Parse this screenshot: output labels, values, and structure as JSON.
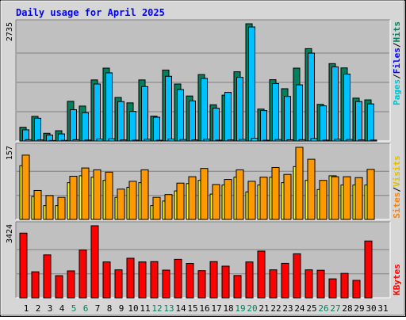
{
  "chart_data": [
    {
      "type": "bar",
      "title": "Daily usage for April 2025",
      "ymax_label": "2735",
      "ylim": [
        0,
        2735
      ],
      "categories": [
        "1",
        "2",
        "3",
        "4",
        "5",
        "6",
        "7",
        "8",
        "9",
        "10",
        "11",
        "12",
        "13",
        "14",
        "15",
        "16",
        "17",
        "18",
        "19",
        "20",
        "21",
        "22",
        "23",
        "24",
        "25",
        "26",
        "27",
        "28",
        "29",
        "30",
        "31"
      ],
      "weekend_days": [
        "5",
        "6",
        "12",
        "13",
        "19",
        "20",
        "26",
        "27"
      ],
      "series": [
        {
          "name": "Hits",
          "color": "#00805c",
          "values": [
            320,
            575,
            180,
            240,
            925,
            815,
            1425,
            1700,
            1015,
            890,
            1425,
            580,
            1655,
            1330,
            1050,
            1550,
            845,
            1070,
            1615,
            2735,
            745,
            1430,
            1220,
            1700,
            2155,
            855,
            1805,
            1705,
            1000,
            960,
            0
          ]
        },
        {
          "name": "Files",
          "color": "#00c0ff",
          "values": [
            260,
            530,
            140,
            165,
            730,
            660,
            1330,
            1590,
            920,
            690,
            1270,
            555,
            1510,
            1200,
            935,
            1460,
            765,
            1135,
            1485,
            2660,
            710,
            1340,
            1040,
            1310,
            2050,
            820,
            1730,
            1560,
            920,
            865,
            0
          ]
        },
        {
          "name": "Pages",
          "color": "#00e0ff",
          "values": [
            30,
            25,
            12,
            15,
            30,
            22,
            45,
            50,
            25,
            20,
            40,
            18,
            45,
            35,
            25,
            40,
            20,
            25,
            38,
            60,
            18,
            35,
            28,
            30,
            55,
            20,
            40,
            35,
            25,
            22,
            0
          ]
        }
      ]
    },
    {
      "type": "bar",
      "ymax_label": "157",
      "ylim": [
        0,
        157
      ],
      "categories": [
        "1",
        "2",
        "3",
        "4",
        "5",
        "6",
        "7",
        "8",
        "9",
        "10",
        "11",
        "12",
        "13",
        "14",
        "15",
        "16",
        "17",
        "18",
        "19",
        "20",
        "21",
        "22",
        "23",
        "24",
        "25",
        "26",
        "27",
        "28",
        "29",
        "30",
        "31"
      ],
      "series": [
        {
          "name": "Visits",
          "color": "#ffff00",
          "values": [
            117,
            50,
            30,
            30,
            80,
            95,
            92,
            85,
            48,
            70,
            80,
            30,
            40,
            62,
            78,
            85,
            55,
            75,
            92,
            60,
            75,
            92,
            80,
            115,
            85,
            65,
            95,
            75,
            75,
            75,
            0
          ]
        },
        {
          "name": "Sites",
          "color": "#ff9900",
          "values": [
            140,
            63,
            52,
            48,
            94,
            112,
            108,
            103,
            66,
            83,
            108,
            48,
            54,
            79,
            93,
            111,
            76,
            87,
            108,
            83,
            92,
            113,
            98,
            157,
            131,
            85,
            93,
            93,
            91,
            109,
            0
          ]
        }
      ]
    },
    {
      "type": "bar",
      "ymax_label": "3424",
      "ylim": [
        0,
        3424
      ],
      "categories": [
        "1",
        "2",
        "3",
        "4",
        "5",
        "6",
        "7",
        "8",
        "9",
        "10",
        "11",
        "12",
        "13",
        "14",
        "15",
        "16",
        "17",
        "18",
        "19",
        "20",
        "21",
        "22",
        "23",
        "24",
        "25",
        "26",
        "27",
        "28",
        "29",
        "30",
        "31"
      ],
      "series": [
        {
          "name": "KBytes",
          "color": "#ff0000",
          "values": [
            3075,
            1237,
            2040,
            1053,
            1280,
            2270,
            3424,
            1705,
            1330,
            1880,
            1705,
            1720,
            1317,
            1830,
            1636,
            1290,
            1720,
            1505,
            1060,
            1705,
            2220,
            1330,
            1640,
            2092,
            1330,
            1310,
            900,
            1160,
            830,
            2700,
            0
          ]
        }
      ]
    }
  ],
  "legend": {
    "top": [
      {
        "text": "Pages",
        "color": "#00c0d0"
      },
      {
        "text": "/",
        "color": "#000000"
      },
      {
        "text": "Files",
        "color": "#0000ff"
      },
      {
        "text": "/",
        "color": "#000000"
      },
      {
        "text": "Hits",
        "color": "#00805c"
      }
    ],
    "middle": [
      {
        "text": "Sites",
        "color": "#ff8000"
      },
      {
        "text": "/",
        "color": "#000000"
      },
      {
        "text": "Visits",
        "color": "#e0c000"
      }
    ],
    "bottom": [
      {
        "text": "KBytes",
        "color": "#ff0000"
      }
    ]
  },
  "colors": {
    "title": "#0000ff",
    "plot_background": "#c0c0c0",
    "frame_background": "#d6d6d6",
    "weekday_label": "#000000",
    "weekend_label": "#00805c"
  }
}
